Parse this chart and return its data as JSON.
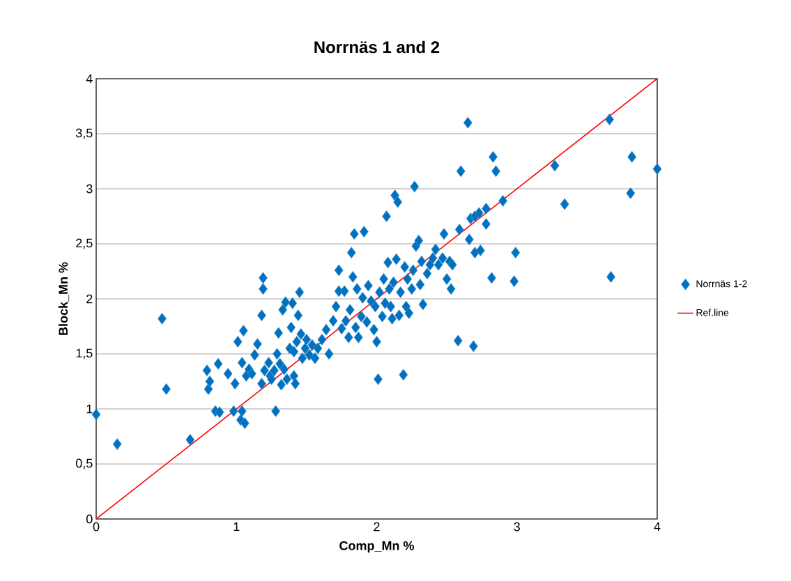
{
  "chart_data": {
    "type": "scatter",
    "title": "Norrnäs 1 and 2",
    "xlabel": "Comp_Mn  %",
    "ylabel": "Block_Mn %",
    "xlim": [
      0,
      4
    ],
    "ylim": [
      0,
      4
    ],
    "xticks": [
      0,
      1,
      2,
      3,
      4
    ],
    "yticks": [
      0,
      {
        "value": 0.5,
        "label": "0,5"
      },
      1,
      {
        "value": 1.5,
        "label": "1,5"
      },
      2,
      {
        "value": 2.5,
        "label": "2,5"
      },
      3,
      {
        "value": 3.5,
        "label": "3,5"
      },
      4
    ],
    "grid": "y",
    "legend": "right",
    "series": [
      {
        "name": "Norrnäs 1-2",
        "marker": "diamond",
        "color": "#0070c0",
        "x": [
          0,
          0.15,
          0.47,
          0.5,
          0.67,
          0.79,
          0.8,
          0.81,
          0.87,
          0.85,
          0.88,
          0.94,
          0.98,
          0.99,
          1.01,
          1.03,
          1.04,
          1.04,
          1.05,
          1.06,
          1.07,
          1.09,
          1.11,
          1.13,
          1.15,
          1.18,
          1.19,
          1.19,
          1.2,
          1.18,
          1.23,
          1.24,
          1.25,
          1.27,
          1.28,
          1.29,
          1.3,
          1.31,
          1.32,
          1.33,
          1.34,
          1.35,
          1.36,
          1.38,
          1.39,
          1.4,
          1.41,
          1.41,
          1.42,
          1.43,
          1.44,
          1.45,
          1.46,
          1.47,
          1.49,
          1.5,
          1.52,
          1.54,
          1.56,
          1.58,
          1.61,
          1.64,
          1.66,
          1.69,
          1.71,
          1.73,
          1.73,
          1.75,
          1.77,
          1.78,
          1.8,
          1.81,
          1.82,
          1.83,
          1.84,
          1.85,
          1.86,
          1.87,
          1.89,
          1.9,
          1.91,
          1.93,
          1.94,
          1.96,
          1.98,
          1.99,
          2.0,
          2.01,
          2.02,
          2.04,
          2.05,
          2.06,
          2.07,
          2.08,
          2.09,
          2.1,
          2.11,
          2.12,
          2.13,
          2.14,
          2.15,
          2.16,
          2.17,
          2.19,
          2.2,
          2.21,
          2.22,
          2.23,
          2.25,
          2.26,
          2.27,
          2.28,
          2.3,
          2.31,
          2.32,
          2.33,
          2.36,
          2.38,
          2.4,
          2.42,
          2.44,
          2.47,
          2.48,
          2.5,
          2.52,
          2.53,
          2.54,
          2.58,
          2.59,
          2.6,
          2.65,
          2.66,
          2.67,
          2.69,
          2.7,
          2.7,
          2.73,
          2.74,
          2.78,
          2.78,
          2.82,
          2.83,
          2.85,
          2.9,
          2.98,
          2.99,
          3.27,
          3.34,
          3.66,
          3.67,
          3.81,
          3.82,
          4.0
        ],
        "values": [
          0.95,
          0.68,
          1.82,
          1.18,
          0.72,
          1.35,
          1.18,
          1.25,
          1.41,
          0.98,
          0.97,
          1.32,
          0.98,
          1.23,
          1.61,
          0.9,
          1.42,
          0.98,
          1.71,
          0.87,
          1.3,
          1.36,
          1.32,
          1.49,
          1.59,
          1.85,
          2.09,
          2.19,
          1.35,
          1.23,
          1.42,
          1.3,
          1.27,
          1.35,
          0.98,
          1.5,
          1.69,
          1.41,
          1.22,
          1.9,
          1.36,
          1.97,
          1.27,
          1.55,
          1.74,
          1.96,
          1.52,
          1.3,
          1.23,
          1.61,
          1.85,
          2.06,
          1.68,
          1.46,
          1.55,
          1.63,
          1.49,
          1.58,
          1.46,
          1.55,
          1.63,
          1.72,
          1.5,
          1.8,
          1.93,
          2.07,
          2.26,
          1.73,
          2.07,
          1.8,
          1.65,
          1.9,
          2.42,
          2.2,
          2.59,
          1.74,
          2.09,
          1.65,
          1.84,
          2.01,
          2.61,
          1.79,
          2.12,
          1.98,
          1.72,
          1.93,
          1.61,
          1.27,
          2.06,
          1.84,
          2.18,
          1.96,
          2.75,
          2.33,
          2.09,
          1.93,
          1.82,
          2.15,
          2.94,
          2.36,
          2.88,
          1.85,
          2.06,
          1.31,
          2.29,
          1.93,
          2.18,
          1.87,
          2.09,
          2.26,
          3.02,
          2.48,
          2.53,
          2.13,
          2.34,
          1.95,
          2.23,
          2.31,
          2.37,
          2.45,
          2.31,
          2.37,
          2.59,
          2.18,
          2.34,
          2.09,
          2.31,
          1.62,
          2.63,
          3.16,
          3.6,
          2.54,
          2.73,
          1.57,
          2.42,
          2.75,
          2.78,
          2.44,
          2.68,
          2.82,
          2.19,
          3.29,
          3.16,
          2.89,
          2.16,
          2.42,
          3.21,
          2.86,
          3.63,
          2.2,
          2.96,
          3.29,
          3.18
        ]
      },
      {
        "name": "Ref.line",
        "type": "line",
        "color": "#ff0000",
        "x": [
          0,
          4
        ],
        "values": [
          0,
          4
        ]
      }
    ]
  }
}
